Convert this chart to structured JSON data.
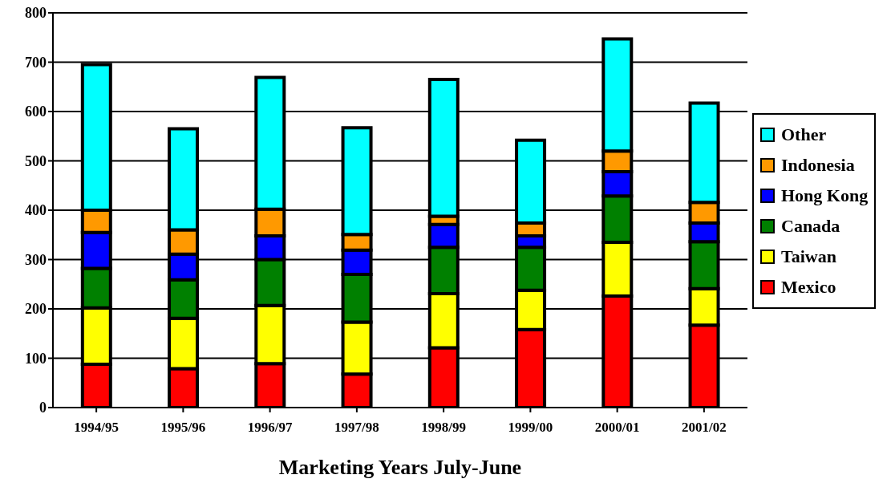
{
  "chart_data": {
    "type": "bar",
    "stacked": true,
    "xlabel": "Marketing Years July-June",
    "categories": [
      "1994/95",
      "1995/96",
      "1996/97",
      "1997/98",
      "1998/99",
      "1999/00",
      "2000/01",
      "2001/02"
    ],
    "series": [
      {
        "name": "Mexico",
        "color": "#ff0000",
        "values": [
          88,
          79,
          89,
          68,
          121,
          158,
          226,
          167
        ]
      },
      {
        "name": "Taiwan",
        "color": "#ffff00",
        "values": [
          114,
          102,
          118,
          105,
          110,
          80,
          109,
          74
        ]
      },
      {
        "name": "Canada",
        "color": "#008000",
        "values": [
          80,
          78,
          93,
          97,
          94,
          87,
          94,
          95
        ]
      },
      {
        "name": "Hong Kong",
        "color": "#0000ff",
        "values": [
          73,
          52,
          48,
          49,
          46,
          23,
          49,
          38
        ]
      },
      {
        "name": "Indonesia",
        "color": "#ff9900",
        "values": [
          45,
          49,
          54,
          32,
          17,
          26,
          42,
          42
        ]
      },
      {
        "name": "Other",
        "color": "#00ffff",
        "values": [
          295,
          205,
          267,
          216,
          277,
          168,
          227,
          201
        ]
      }
    ],
    "ylim": [
      0,
      800
    ],
    "yticks": [
      0,
      100,
      200,
      300,
      400,
      500,
      600,
      700,
      800
    ],
    "grid": "y",
    "legend": "right"
  }
}
